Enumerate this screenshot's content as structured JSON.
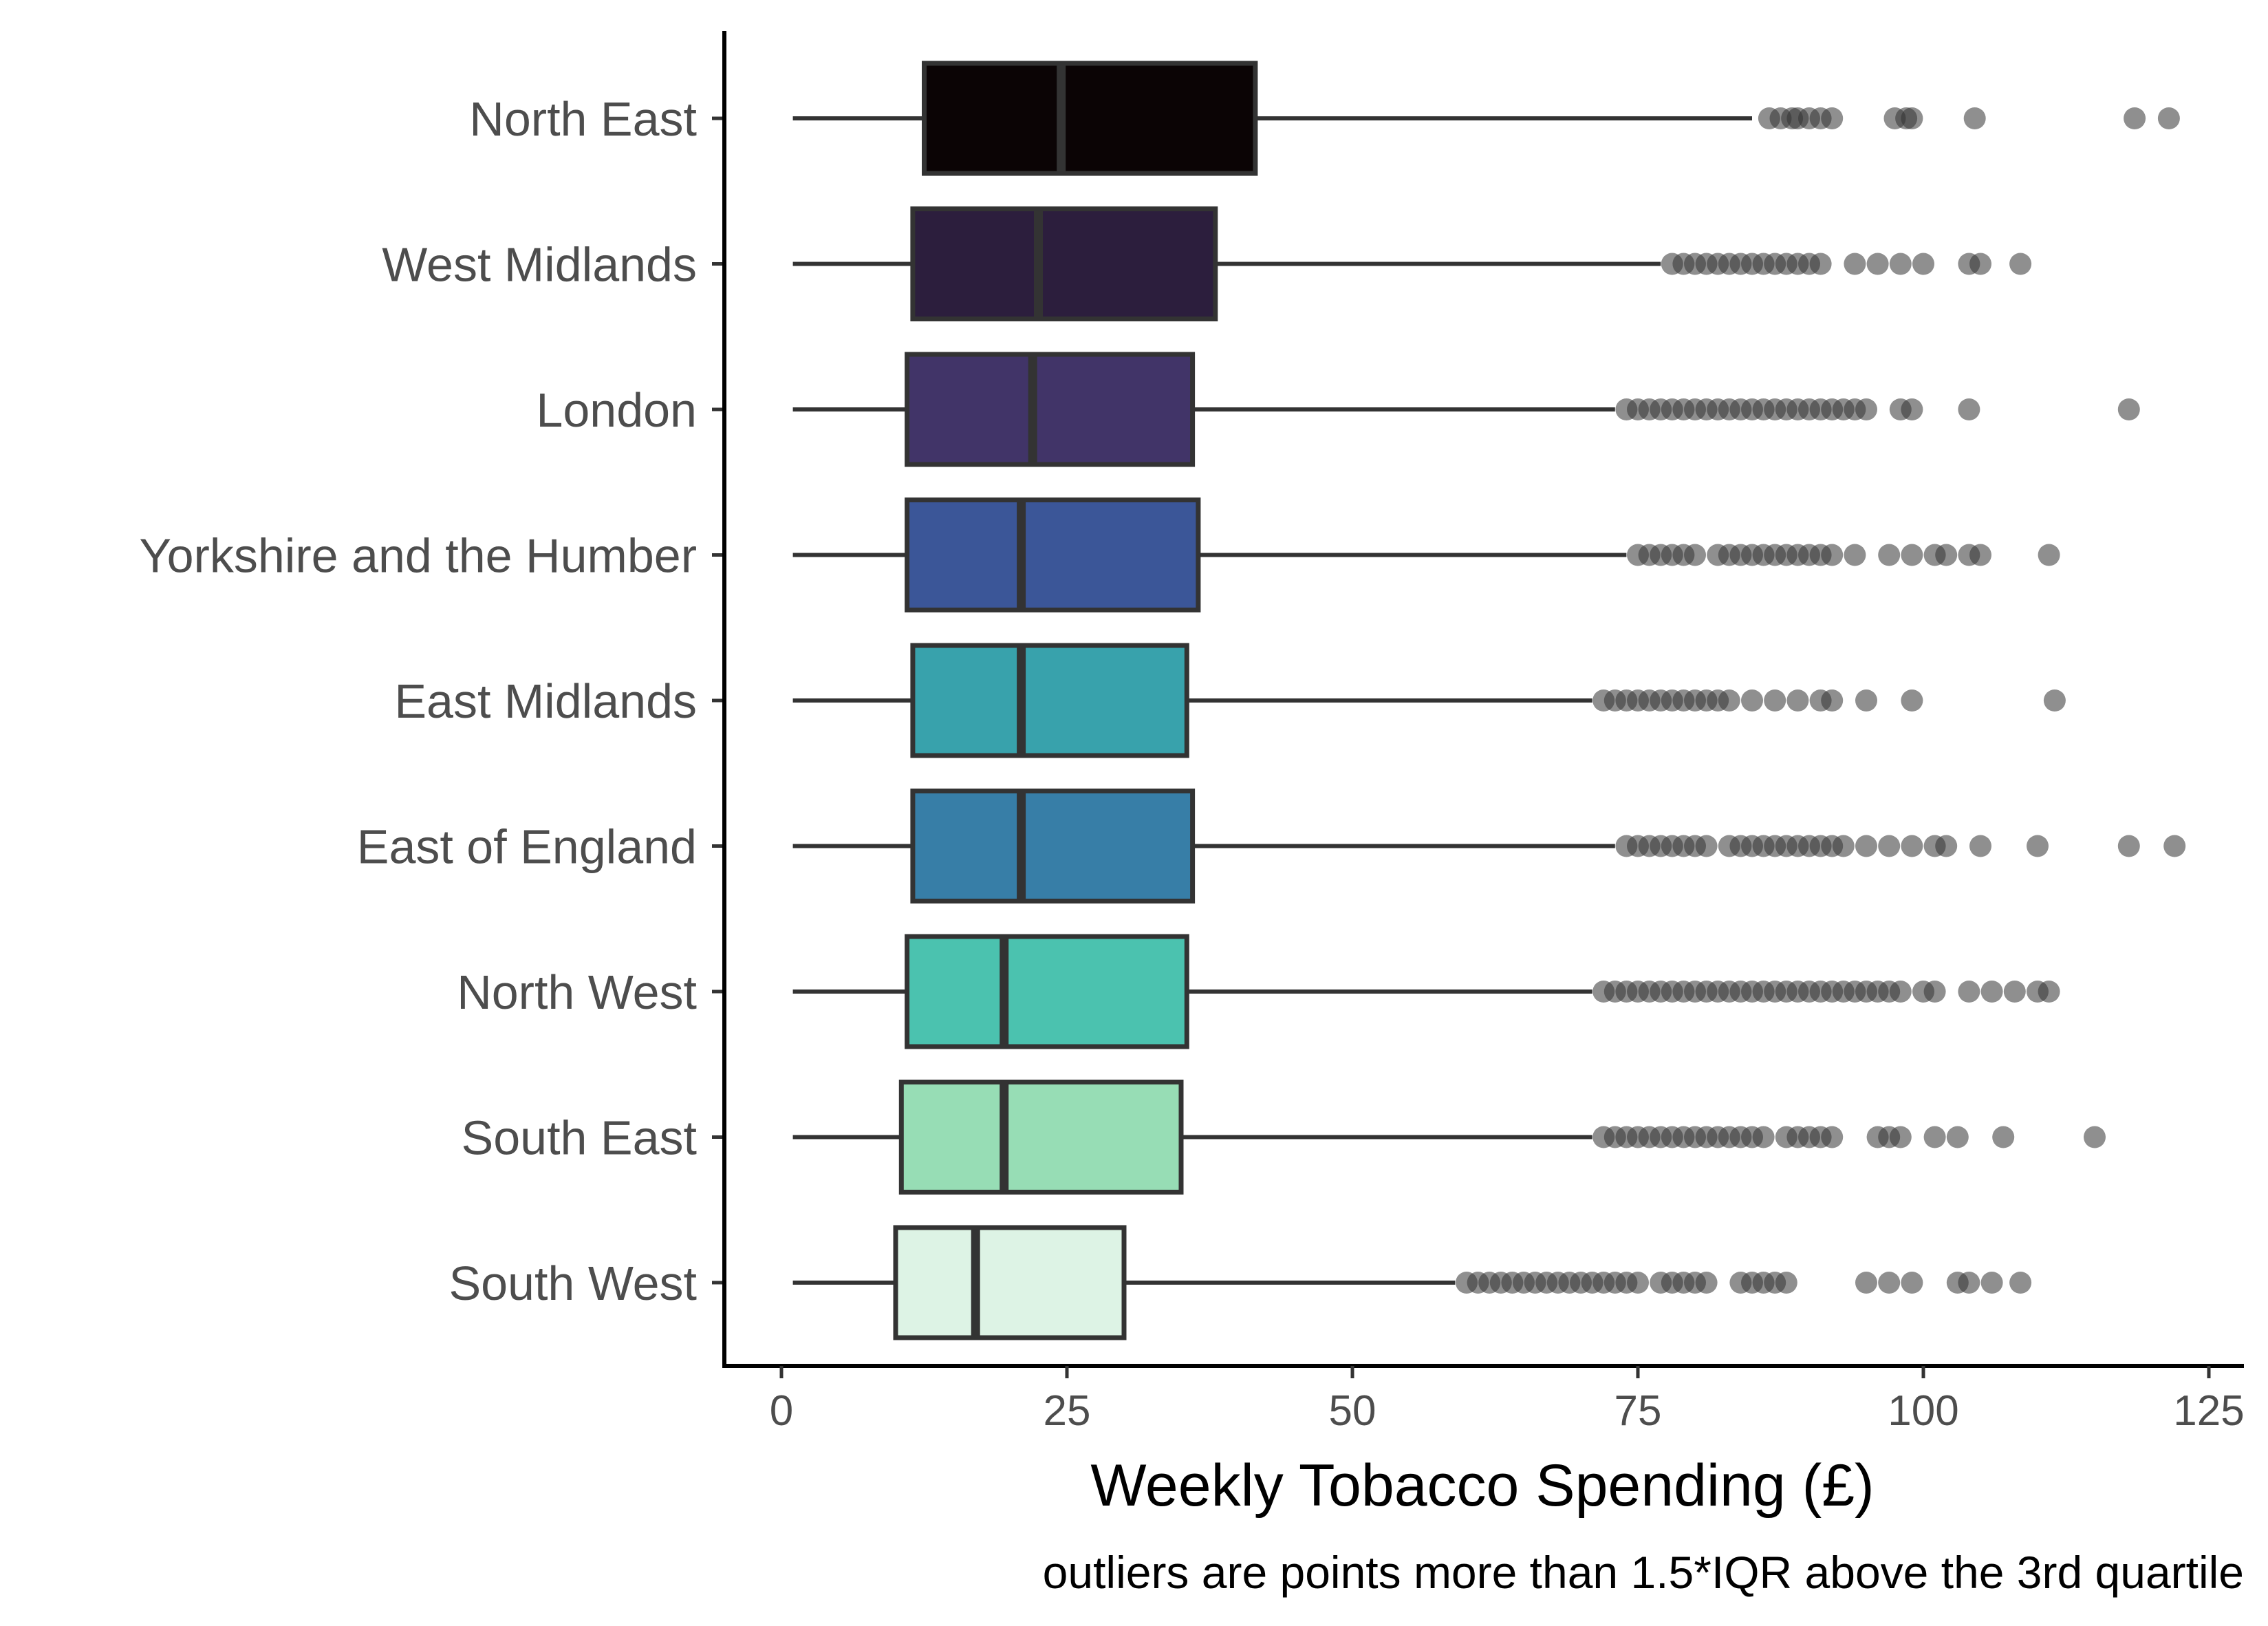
{
  "chart_data": {
    "type": "boxplot",
    "orientation": "horizontal",
    "xlabel": "Weekly Tobacco Spending (£)",
    "caption": "outliers are points more than 1.5*IQR above the 3rd quartile",
    "xlim": [
      -2,
      128
    ],
    "xticks": [
      0,
      25,
      50,
      75,
      100,
      125
    ],
    "grid": false,
    "legend": "none",
    "outlier_color": "#333333",
    "box_stroke": "#333333",
    "categories": [
      "North East",
      "West Midlands",
      "London",
      "Yorkshire and the Humber",
      "East Midlands",
      "East of England",
      "North West",
      "South East",
      "South West"
    ],
    "boxes": [
      {
        "name": "North East",
        "color": "#0b0405",
        "whisker_low": 1,
        "q1": 12.5,
        "median": 24.5,
        "q3": 41.5,
        "whisker_high": 85,
        "outliers": [
          86.5,
          87.5,
          88.5,
          89,
          90,
          91,
          92,
          97.5,
          98.5,
          99,
          104.5,
          118.5,
          121.5
        ]
      },
      {
        "name": "West Midlands",
        "color": "#2c1e3d",
        "whisker_low": 1,
        "q1": 11.5,
        "median": 22.5,
        "q3": 38,
        "whisker_high": 77,
        "outliers": [
          78,
          79,
          80,
          81,
          82,
          83,
          84,
          85,
          86,
          87,
          88,
          89,
          90,
          91,
          94,
          96,
          98,
          100,
          104,
          105,
          108.5
        ]
      },
      {
        "name": "London",
        "color": "#413468",
        "whisker_low": 1,
        "q1": 11,
        "median": 22,
        "q3": 36,
        "whisker_high": 73,
        "outliers": [
          74,
          75,
          76,
          77,
          78,
          79,
          80,
          81,
          82,
          83,
          84,
          85,
          86,
          87,
          88,
          89,
          90,
          91,
          92,
          93,
          94,
          95,
          98,
          99,
          104,
          118
        ]
      },
      {
        "name": "Yorkshire and the Humber",
        "color": "#3b5698",
        "whisker_low": 1,
        "q1": 11,
        "median": 21,
        "q3": 36.5,
        "whisker_high": 74,
        "outliers": [
          75,
          76,
          77,
          78,
          79,
          80,
          82,
          83,
          84,
          85,
          86,
          87,
          88,
          89,
          90,
          91,
          92,
          94,
          97,
          99,
          101,
          102,
          104,
          105,
          111
        ]
      },
      {
        "name": "East Midlands",
        "color": "#38a2ac",
        "whisker_low": 1,
        "q1": 11.5,
        "median": 21,
        "q3": 35.5,
        "whisker_high": 71,
        "outliers": [
          72,
          73,
          74,
          75,
          76,
          77,
          78,
          79,
          80,
          81,
          82,
          83,
          85,
          87,
          89,
          91,
          92,
          95,
          99,
          111.5
        ]
      },
      {
        "name": "East of England",
        "color": "#377ea7",
        "whisker_low": 1,
        "q1": 11.5,
        "median": 21,
        "q3": 36,
        "whisker_high": 73,
        "outliers": [
          74,
          75,
          76,
          77,
          78,
          79,
          80,
          81,
          83,
          84,
          85,
          86,
          87,
          88,
          89,
          90,
          91,
          92,
          93,
          95,
          97,
          99,
          101,
          102,
          105,
          110,
          118,
          122
        ]
      },
      {
        "name": "North West",
        "color": "#4bc2af",
        "whisker_low": 1,
        "q1": 11,
        "median": 19.5,
        "q3": 35.5,
        "whisker_high": 71,
        "outliers": [
          72,
          73,
          74,
          75,
          76,
          77,
          78,
          79,
          80,
          81,
          82,
          83,
          84,
          85,
          86,
          87,
          88,
          89,
          90,
          91,
          92,
          93,
          94,
          95,
          96,
          97,
          98,
          100,
          101,
          104,
          106,
          108,
          110,
          111
        ]
      },
      {
        "name": "South East",
        "color": "#97ddb5",
        "whisker_low": 1,
        "q1": 10.5,
        "median": 19.5,
        "q3": 35,
        "whisker_high": 71,
        "outliers": [
          72,
          73,
          74,
          75,
          76,
          77,
          78,
          79,
          80,
          81,
          82,
          83,
          84,
          85,
          86,
          88,
          89,
          90,
          91,
          92,
          96,
          97,
          98,
          101,
          103,
          107,
          115
        ]
      },
      {
        "name": "South West",
        "color": "#ddf3e5",
        "whisker_low": 1,
        "q1": 10,
        "median": 17,
        "q3": 30,
        "whisker_high": 59,
        "outliers": [
          60,
          61,
          62,
          63,
          64,
          65,
          66,
          67,
          68,
          69,
          70,
          71,
          72,
          73,
          74,
          75,
          77,
          78,
          79,
          80,
          81,
          84,
          85,
          86,
          87,
          88,
          95,
          97,
          99,
          103,
          104,
          106,
          108.5
        ]
      }
    ]
  }
}
